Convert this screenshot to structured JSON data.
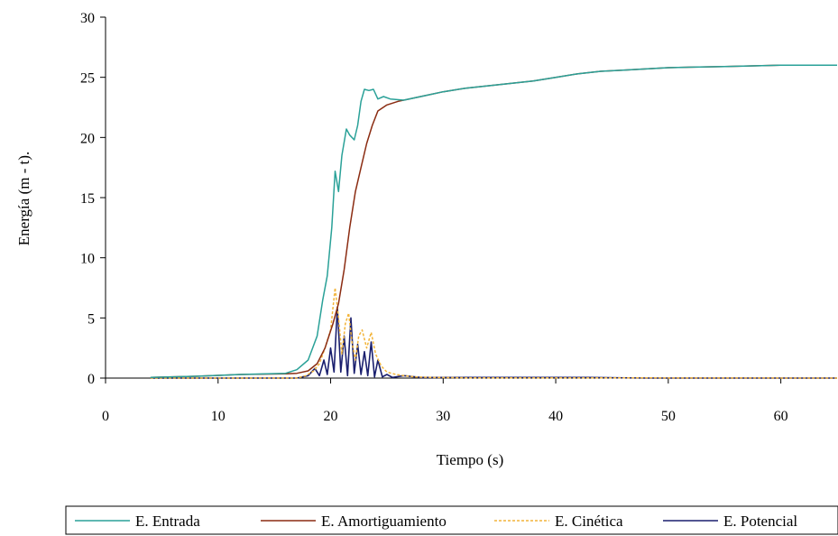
{
  "chart_data": {
    "type": "line",
    "xlabel": "Tiempo (s)",
    "ylabel": "Energía (m - t).",
    "xlim": [
      0,
      65
    ],
    "ylim": [
      0,
      30
    ],
    "xticks": [
      "0",
      "10",
      "20",
      "30",
      "40",
      "50",
      "60"
    ],
    "yticks": [
      "0",
      "5",
      "10",
      "15",
      "20",
      "25",
      "30"
    ],
    "grid": false,
    "legend_position": "bottom",
    "series": [
      {
        "name": "E. Entrada",
        "color": "#2aa198",
        "style": "solid",
        "points": [
          [
            4,
            0.05
          ],
          [
            8,
            0.15
          ],
          [
            12,
            0.3
          ],
          [
            16,
            0.4
          ],
          [
            17,
            0.7
          ],
          [
            18,
            1.5
          ],
          [
            18.8,
            3.5
          ],
          [
            19.3,
            6.5
          ],
          [
            19.7,
            8.5
          ],
          [
            20.1,
            12.5
          ],
          [
            20.4,
            17.2
          ],
          [
            20.7,
            15.5
          ],
          [
            21.0,
            18.5
          ],
          [
            21.4,
            20.7
          ],
          [
            21.7,
            20.2
          ],
          [
            22.1,
            19.8
          ],
          [
            22.4,
            21.0
          ],
          [
            22.7,
            23.0
          ],
          [
            23.0,
            24.0
          ],
          [
            23.4,
            23.9
          ],
          [
            23.8,
            24.0
          ],
          [
            24.2,
            23.2
          ],
          [
            24.7,
            23.4
          ],
          [
            25.3,
            23.2
          ],
          [
            26.5,
            23.1
          ],
          [
            28,
            23.4
          ],
          [
            30,
            23.8
          ],
          [
            32,
            24.1
          ],
          [
            35,
            24.4
          ],
          [
            38,
            24.7
          ],
          [
            40,
            25.0
          ],
          [
            42,
            25.3
          ],
          [
            44,
            25.5
          ],
          [
            46,
            25.6
          ],
          [
            50,
            25.8
          ],
          [
            55,
            25.9
          ],
          [
            60,
            26.0
          ],
          [
            65,
            26.0
          ]
        ]
      },
      {
        "name": "E. Amortiguamiento",
        "color": "#8b2c12",
        "style": "solid",
        "points": [
          [
            4,
            0.05
          ],
          [
            8,
            0.15
          ],
          [
            12,
            0.3
          ],
          [
            16,
            0.35
          ],
          [
            17,
            0.4
          ],
          [
            18,
            0.6
          ],
          [
            18.8,
            1.2
          ],
          [
            19.5,
            2.5
          ],
          [
            20.2,
            4.5
          ],
          [
            20.7,
            6.2
          ],
          [
            21.2,
            9.0
          ],
          [
            21.7,
            12.5
          ],
          [
            22.2,
            15.5
          ],
          [
            22.7,
            17.5
          ],
          [
            23.2,
            19.5
          ],
          [
            23.7,
            21.0
          ],
          [
            24.2,
            22.2
          ],
          [
            25,
            22.7
          ],
          [
            26,
            23.0
          ],
          [
            28,
            23.4
          ],
          [
            30,
            23.8
          ],
          [
            32,
            24.1
          ],
          [
            35,
            24.4
          ],
          [
            38,
            24.7
          ],
          [
            40,
            25.0
          ],
          [
            42,
            25.3
          ],
          [
            44,
            25.5
          ],
          [
            46,
            25.6
          ],
          [
            50,
            25.8
          ],
          [
            55,
            25.9
          ],
          [
            60,
            26.0
          ],
          [
            65,
            26.0
          ]
        ]
      },
      {
        "name": "E. Cinética",
        "color": "#f2b43a",
        "style": "dashed",
        "points": [
          [
            4,
            0
          ],
          [
            17,
            0
          ],
          [
            17.8,
            0.2
          ],
          [
            18.5,
            0.6
          ],
          [
            19,
            1.2
          ],
          [
            19.5,
            2.5
          ],
          [
            20,
            4.0
          ],
          [
            20.4,
            7.5
          ],
          [
            20.7,
            5.0
          ],
          [
            21.0,
            2.0
          ],
          [
            21.3,
            4.5
          ],
          [
            21.6,
            5.4
          ],
          [
            21.9,
            3.0
          ],
          [
            22.2,
            1.5
          ],
          [
            22.5,
            3.5
          ],
          [
            22.8,
            4.0
          ],
          [
            23.2,
            2.5
          ],
          [
            23.6,
            3.8
          ],
          [
            24.0,
            2.0
          ],
          [
            24.5,
            1.0
          ],
          [
            25,
            0.5
          ],
          [
            25.8,
            0.3
          ],
          [
            26.5,
            0.2
          ],
          [
            27.5,
            0.1
          ],
          [
            29,
            0.05
          ],
          [
            32,
            0.02
          ],
          [
            40,
            0.02
          ],
          [
            65,
            0
          ]
        ]
      },
      {
        "name": "E. Potencial",
        "color": "#1a1f6e",
        "style": "solid",
        "points": [
          [
            4,
            0
          ],
          [
            17,
            0
          ],
          [
            18,
            0.2
          ],
          [
            18.6,
            0.8
          ],
          [
            19.0,
            0.2
          ],
          [
            19.4,
            1.5
          ],
          [
            19.7,
            0.3
          ],
          [
            20.0,
            2.5
          ],
          [
            20.3,
            0.5
          ],
          [
            20.6,
            5.9
          ],
          [
            20.9,
            0.5
          ],
          [
            21.2,
            3.5
          ],
          [
            21.5,
            0.2
          ],
          [
            21.8,
            5.0
          ],
          [
            22.1,
            0.4
          ],
          [
            22.4,
            2.8
          ],
          [
            22.7,
            0.3
          ],
          [
            23.0,
            2.2
          ],
          [
            23.3,
            0.2
          ],
          [
            23.6,
            3.0
          ],
          [
            23.9,
            0.1
          ],
          [
            24.2,
            1.5
          ],
          [
            24.6,
            0.1
          ],
          [
            25,
            0.3
          ],
          [
            25.5,
            0.05
          ],
          [
            26.5,
            0.2
          ],
          [
            28,
            0.05
          ],
          [
            30,
            0.05
          ],
          [
            35,
            0.05
          ],
          [
            40,
            0.05
          ],
          [
            43,
            0.05
          ],
          [
            48,
            0
          ],
          [
            65,
            0
          ]
        ]
      }
    ]
  }
}
